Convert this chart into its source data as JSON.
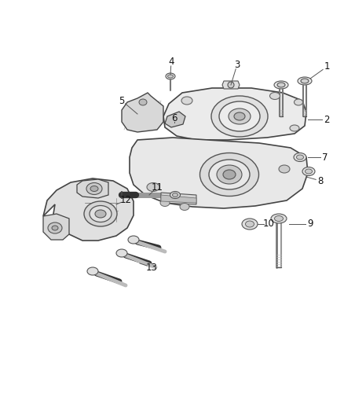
{
  "background_color": "#ffffff",
  "fig_width": 4.38,
  "fig_height": 5.33,
  "dpi": 100,
  "line_color": "#555555",
  "line_color_dark": "#333333",
  "fill_light": "#f0f0f0",
  "fill_mid": "#e0e0e0",
  "fill_dark": "#c8c8c8",
  "label_fontsize": 8.5
}
